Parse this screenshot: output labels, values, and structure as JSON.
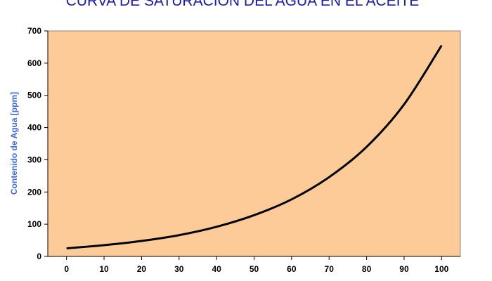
{
  "chart_data": {
    "type": "line",
    "title": "CURVA DE SATURACIÓN DEL AGUA EN EL ACEITE",
    "y_label": "Contenido de Agua [ppm]",
    "x": [
      0,
      10,
      20,
      30,
      40,
      50,
      60,
      70,
      80,
      90,
      100
    ],
    "series": [
      {
        "color": "#000000",
        "values": [
          25,
          35,
          48,
          66,
          92,
          128,
          177,
          246,
          340,
          472,
          655
        ]
      }
    ],
    "xlim": [
      -5,
      105
    ],
    "xticks": [
      0,
      10,
      20,
      30,
      40,
      50,
      60,
      70,
      80,
      90,
      100
    ],
    "ylim": [
      0,
      700
    ],
    "yticks": [
      0,
      100,
      200,
      300,
      400,
      500,
      600,
      700
    ],
    "plot_color": "#fccb98",
    "title_color": "#1c1ca8",
    "y_label_color": "#3d6be0"
  }
}
